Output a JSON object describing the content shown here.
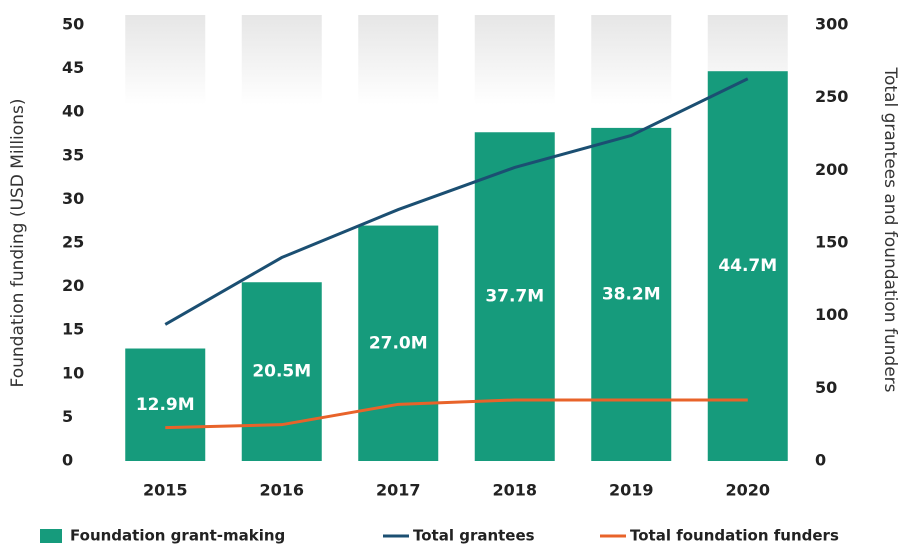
{
  "chart_data": {
    "type": "bar",
    "categories": [
      "2015",
      "2016",
      "2017",
      "2018",
      "2019",
      "2020"
    ],
    "ylabel": "Foundation funding (USD Millions)",
    "y2label": "Total grantees and foundation funders",
    "ylim": [
      0,
      50
    ],
    "yticks": [
      0,
      5,
      10,
      15,
      20,
      25,
      30,
      35,
      40,
      45,
      50
    ],
    "y2lim": [
      0,
      300
    ],
    "y2ticks": [
      0,
      50,
      100,
      150,
      200,
      250,
      300
    ],
    "legend": "bottom",
    "series": [
      {
        "name": "Foundation grant-making",
        "type": "bar",
        "color": "#169b7c",
        "values": [
          12.9,
          20.5,
          27.0,
          37.7,
          38.2,
          44.7
        ],
        "value_labels": [
          "12.9M",
          "20.5M",
          "27.0M",
          "37.7M",
          "38.2M",
          "44.7M"
        ]
      },
      {
        "name": "Total grantees",
        "type": "line",
        "axis": "y2",
        "color": "#1b4f72",
        "values": [
          94,
          140,
          173,
          202,
          224,
          263
        ]
      },
      {
        "name": "Total foundation funders",
        "type": "line",
        "axis": "y2",
        "color": "#e8632a",
        "values": [
          23,
          25,
          39,
          42,
          42,
          42
        ]
      }
    ]
  }
}
